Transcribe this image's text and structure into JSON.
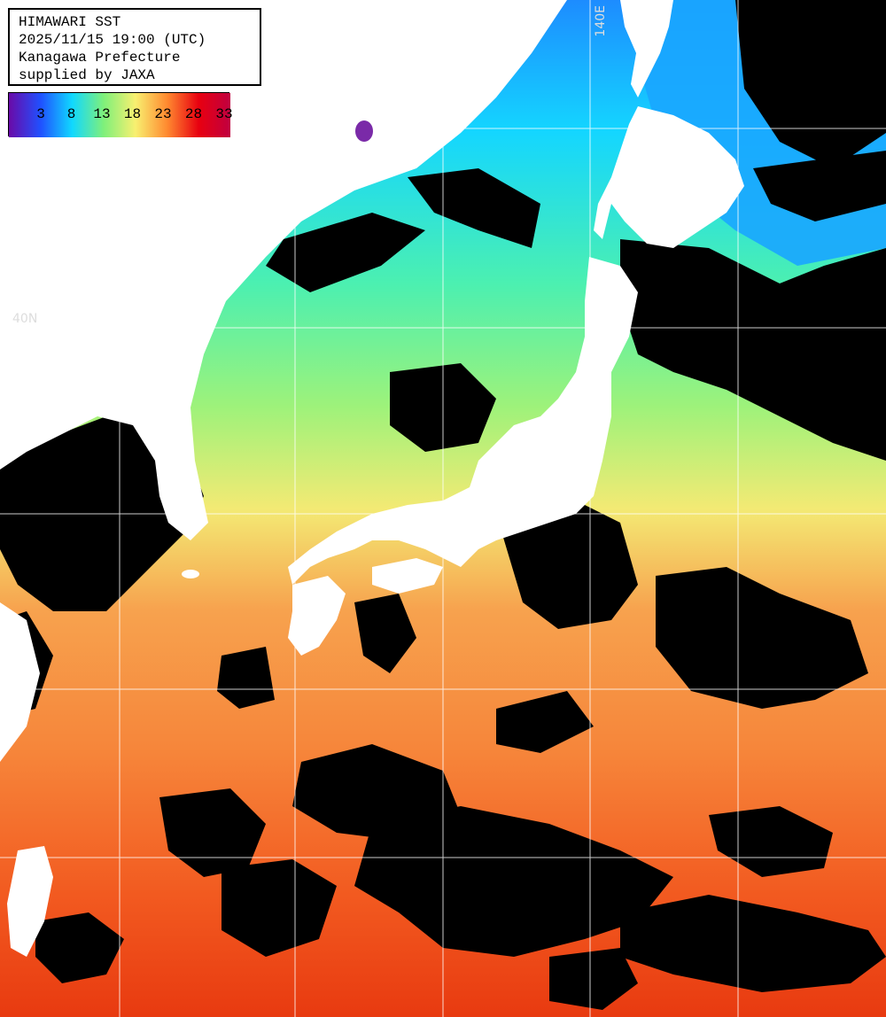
{
  "header": {
    "title": "HIMAWARI SST",
    "timestamp": "2025/11/15 19:00 (UTC)",
    "region": "Kanagawa Prefecture",
    "credit": "supplied by JAXA"
  },
  "legend": {
    "ticks": [
      "3",
      "8",
      "13",
      "18",
      "23",
      "28",
      "33"
    ],
    "colors": [
      "#6a0aa8",
      "#2050ff",
      "#10d8ff",
      "#7ff07a",
      "#f8f070",
      "#ff8a30",
      "#e80010",
      "#c00040"
    ]
  },
  "grid_labels": {
    "longitude": "140E",
    "latitude": "40N"
  },
  "colors": {
    "land": "#ffffff",
    "cloud": "#000000",
    "grid": "#ffffff"
  }
}
